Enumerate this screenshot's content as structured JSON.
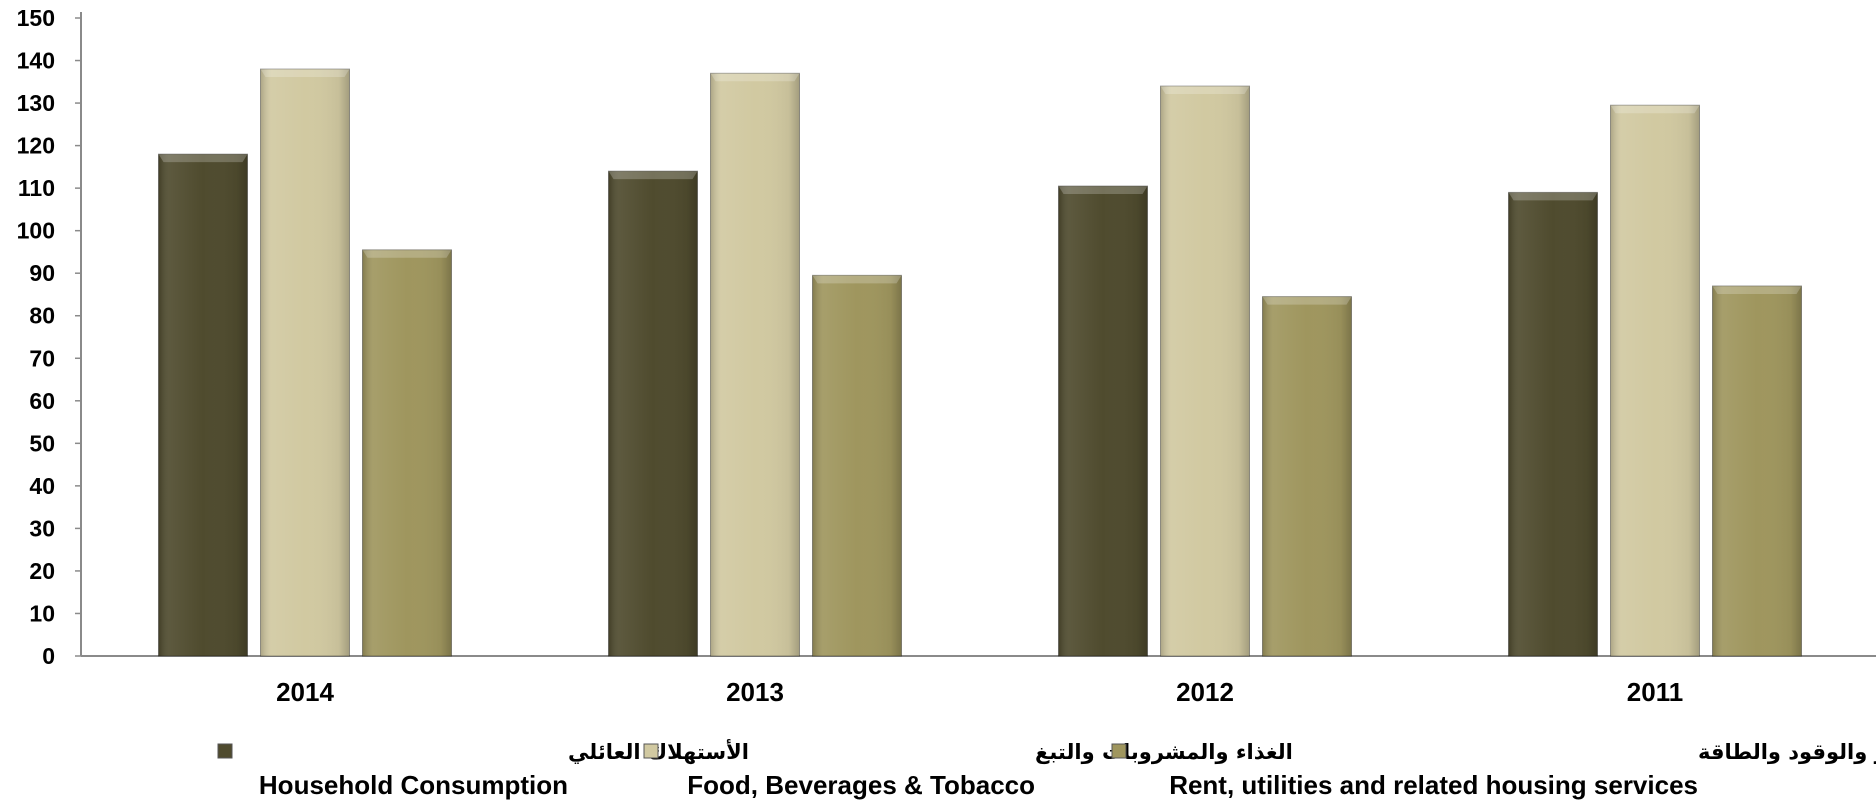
{
  "chart_data": {
    "type": "bar",
    "title": "",
    "xlabel": "",
    "ylabel": "",
    "categories": [
      "2014",
      "2013",
      "2012",
      "2011"
    ],
    "ylim": [
      0,
      150
    ],
    "yticks": [
      0,
      10,
      20,
      30,
      40,
      50,
      60,
      70,
      80,
      90,
      100,
      110,
      120,
      130,
      140,
      150
    ],
    "grid": false,
    "legend_position": "bottom",
    "series": [
      {
        "name_ar": "الأستهلاك العائلي",
        "name": "Household Consumption",
        "color": "#4f4b2e",
        "values": [
          118,
          114,
          110.5,
          109
        ]
      },
      {
        "name_ar": "الغذاء والمشروبات والتبغ",
        "name": "Food, Beverages & Tobacco",
        "color": "#d1c9a1",
        "values": [
          138,
          137,
          134,
          129.5
        ]
      },
      {
        "name_ar": "الإيجار والوقود والطاقة",
        "name": "Rent, utilities and related housing services",
        "color": "#9f965e",
        "values": [
          95.5,
          89.5,
          84.5,
          87
        ]
      }
    ]
  }
}
